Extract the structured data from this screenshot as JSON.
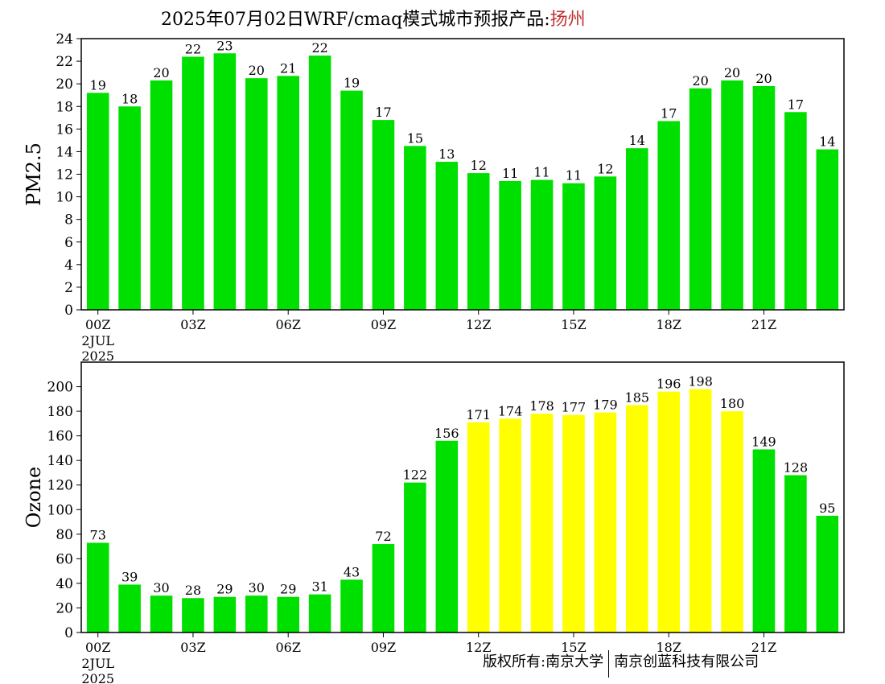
{
  "header": {
    "title_prefix": "2025年07月02日WRF/cmaq模式城市预报产品:",
    "city": "扬州"
  },
  "footer": {
    "left": "版权所有:南京大学",
    "right": "南京创蓝科技有限公司"
  },
  "colors": {
    "green": "#00e000",
    "yellow": "#ffff00",
    "axis": "#000000"
  },
  "chart_data": [
    {
      "type": "bar",
      "ylabel": "PM2.5",
      "ylim": [
        0,
        24
      ],
      "yticks": [
        0,
        2,
        4,
        6,
        8,
        10,
        12,
        14,
        16,
        18,
        20,
        22,
        24
      ],
      "x_tick_labels": [
        {
          "hour": 0,
          "label": "00Z"
        },
        {
          "hour": 3,
          "label": "03Z"
        },
        {
          "hour": 6,
          "label": "06Z"
        },
        {
          "hour": 9,
          "label": "09Z"
        },
        {
          "hour": 12,
          "label": "12Z"
        },
        {
          "hour": 15,
          "label": "15Z"
        },
        {
          "hour": 18,
          "label": "18Z"
        },
        {
          "hour": 21,
          "label": "21Z"
        }
      ],
      "date_label": [
        "2JUL",
        "2025"
      ],
      "values": [
        19.2,
        18.0,
        20.3,
        22.4,
        22.7,
        20.5,
        20.7,
        22.5,
        19.4,
        16.8,
        14.5,
        13.1,
        12.1,
        11.4,
        11.5,
        11.2,
        11.8,
        14.3,
        16.7,
        19.6,
        20.3,
        19.8,
        17.5,
        14.2
      ],
      "labels": [
        "19",
        "18",
        "20",
        "22",
        "23",
        "20",
        "21",
        "22",
        "19",
        "17",
        "15",
        "13",
        "12",
        "11",
        "11",
        "11",
        "12",
        "14",
        "17",
        "20",
        "20",
        "20",
        "17",
        "14"
      ],
      "bar_colors": [
        "green",
        "green",
        "green",
        "green",
        "green",
        "green",
        "green",
        "green",
        "green",
        "green",
        "green",
        "green",
        "green",
        "green",
        "green",
        "green",
        "green",
        "green",
        "green",
        "green",
        "green",
        "green",
        "green",
        "green"
      ]
    },
    {
      "type": "bar",
      "ylabel": "Ozone",
      "ylim": [
        0,
        220
      ],
      "yticks": [
        0,
        20,
        40,
        60,
        80,
        100,
        120,
        140,
        160,
        180,
        200
      ],
      "x_tick_labels": [
        {
          "hour": 0,
          "label": "00Z"
        },
        {
          "hour": 3,
          "label": "03Z"
        },
        {
          "hour": 6,
          "label": "06Z"
        },
        {
          "hour": 9,
          "label": "09Z"
        },
        {
          "hour": 12,
          "label": "12Z"
        },
        {
          "hour": 15,
          "label": "15Z"
        },
        {
          "hour": 18,
          "label": "18Z"
        },
        {
          "hour": 21,
          "label": "21Z"
        }
      ],
      "date_label": [
        "2JUL",
        "2025"
      ],
      "values": [
        73,
        39,
        30,
        28,
        29,
        30,
        29,
        31,
        43,
        72,
        122,
        156,
        171,
        174,
        178,
        177,
        179,
        185,
        196,
        198,
        180,
        149,
        128,
        95
      ],
      "labels": [
        "73",
        "39",
        "30",
        "28",
        "29",
        "30",
        "29",
        "31",
        "43",
        "72",
        "122",
        "156",
        "171",
        "174",
        "178",
        "177",
        "179",
        "185",
        "196",
        "198",
        "180",
        "149",
        "128",
        "95"
      ],
      "bar_colors": [
        "green",
        "green",
        "green",
        "green",
        "green",
        "green",
        "green",
        "green",
        "green",
        "green",
        "green",
        "green",
        "yellow",
        "yellow",
        "yellow",
        "yellow",
        "yellow",
        "yellow",
        "yellow",
        "yellow",
        "yellow",
        "green",
        "green",
        "green"
      ]
    }
  ]
}
